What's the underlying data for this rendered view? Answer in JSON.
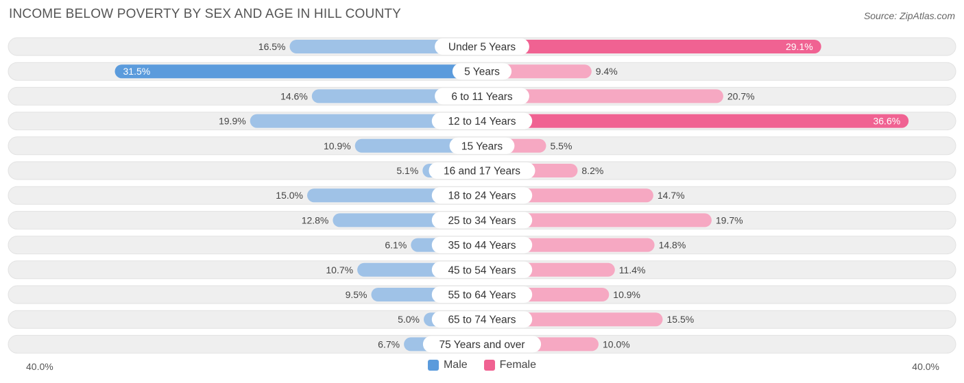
{
  "title": "INCOME BELOW POVERTY BY SEX AND AGE IN HILL COUNTY",
  "source": "Source: ZipAtlas.com",
  "colors": {
    "male_light": "#9fc2e7",
    "male_strong": "#5b9bdc",
    "female_light": "#f6a8c2",
    "female_strong": "#f06292",
    "track": "#efefef"
  },
  "legend": {
    "male": "Male",
    "female": "Female"
  },
  "axis": {
    "left_label": "40.0%",
    "right_label": "40.0%"
  },
  "chart_data": {
    "type": "bar",
    "orientation": "horizontal-diverging",
    "title": "INCOME BELOW POVERTY BY SEX AND AGE IN HILL COUNTY",
    "categories": [
      "Under 5 Years",
      "5 Years",
      "6 to 11 Years",
      "12 to 14 Years",
      "15 Years",
      "16 and 17 Years",
      "18 to 24 Years",
      "25 to 34 Years",
      "35 to 44 Years",
      "45 to 54 Years",
      "55 to 64 Years",
      "65 to 74 Years",
      "75 Years and over"
    ],
    "series": [
      {
        "name": "Male",
        "values": [
          16.5,
          31.5,
          14.6,
          19.9,
          10.9,
          5.1,
          15.0,
          12.8,
          6.1,
          10.7,
          9.5,
          5.0,
          6.7
        ]
      },
      {
        "name": "Female",
        "values": [
          29.1,
          9.4,
          20.7,
          36.6,
          5.5,
          8.2,
          14.7,
          19.7,
          14.8,
          11.4,
          10.9,
          15.5,
          10.0
        ]
      }
    ],
    "xlim": [
      -40,
      40
    ],
    "value_labels": {
      "Male": [
        "16.5%",
        "31.5%",
        "14.6%",
        "19.9%",
        "10.9%",
        "5.1%",
        "15.0%",
        "12.8%",
        "6.1%",
        "10.7%",
        "9.5%",
        "5.0%",
        "6.7%"
      ],
      "Female": [
        "29.1%",
        "9.4%",
        "20.7%",
        "36.6%",
        "5.5%",
        "8.2%",
        "14.7%",
        "19.7%",
        "14.8%",
        "11.4%",
        "10.9%",
        "15.5%",
        "10.0%"
      ]
    },
    "legend_position": "bottom-center"
  }
}
